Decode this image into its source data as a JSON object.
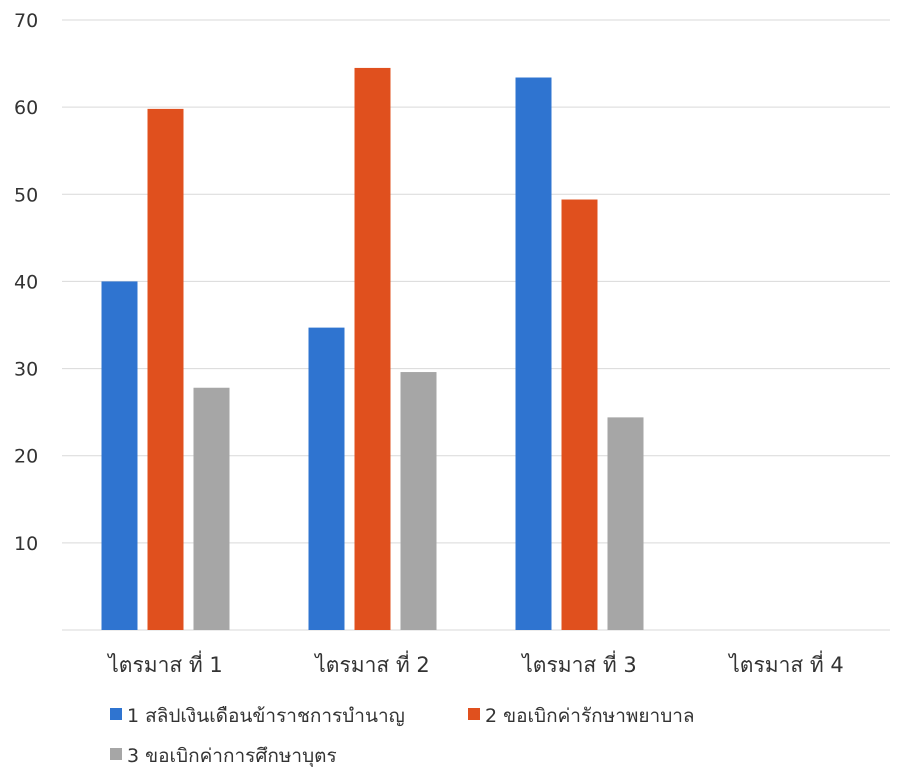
{
  "chart_data": {
    "type": "bar",
    "title": "",
    "xlabel": "",
    "ylabel": "",
    "ylim": [
      0,
      70
    ],
    "yticks": [
      70,
      60,
      50,
      40,
      30,
      20,
      10
    ],
    "grid": true,
    "legend_position": "bottom",
    "categories": [
      "ไตรมาส ที่ 1",
      "ไตรมาส ที่ 2",
      "ไตรมาส ที่ 3",
      "ไตรมาส ที่ 4"
    ],
    "series": [
      {
        "name": "1 สลิปเงินเดือนข้าราชการบำนาญ",
        "color": "#2f74d0",
        "values": [
          40,
          34.7,
          63.4,
          null
        ]
      },
      {
        "name": "2 ขอเบิกค่ารักษาพยาบาล",
        "color": "#e0501e",
        "values": [
          59.8,
          64.5,
          49.4,
          null
        ]
      },
      {
        "name": "3 ขอเบิกค่าการศึกษาบุตร",
        "color": "#a6a6a6",
        "values": [
          27.8,
          29.6,
          24.4,
          null
        ]
      }
    ]
  }
}
